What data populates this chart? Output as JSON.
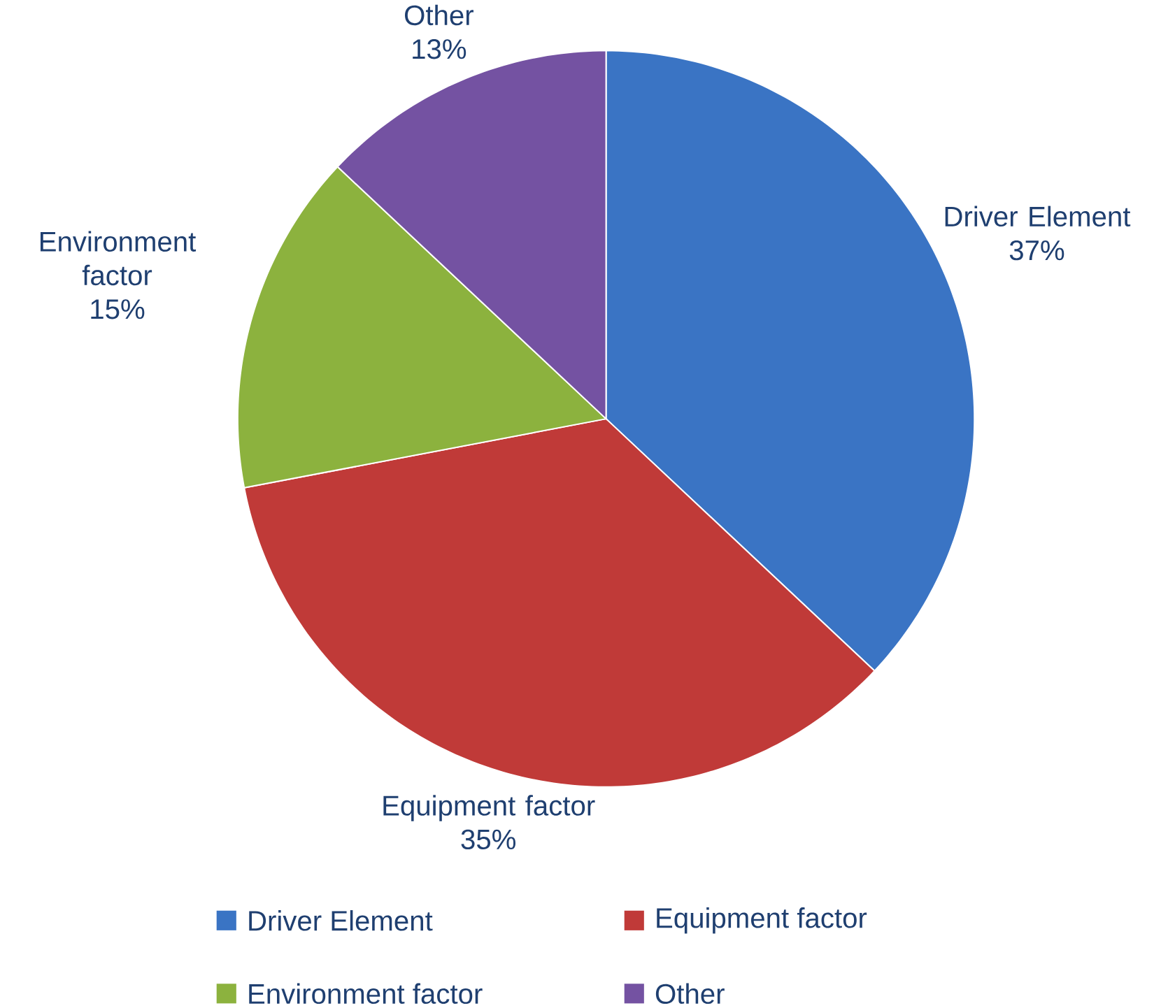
{
  "chart_data": {
    "type": "pie",
    "categories": [
      "Driver Element",
      "Equipment factor",
      "Environment factor",
      "Other"
    ],
    "values": [
      37,
      35,
      15,
      13
    ],
    "colors": [
      "#3a74c4",
      "#c03a38",
      "#8cb23e",
      "#7452a2"
    ],
    "value_labels": [
      "37%",
      "35%",
      "15%",
      "13%"
    ],
    "legend": "bottom"
  }
}
